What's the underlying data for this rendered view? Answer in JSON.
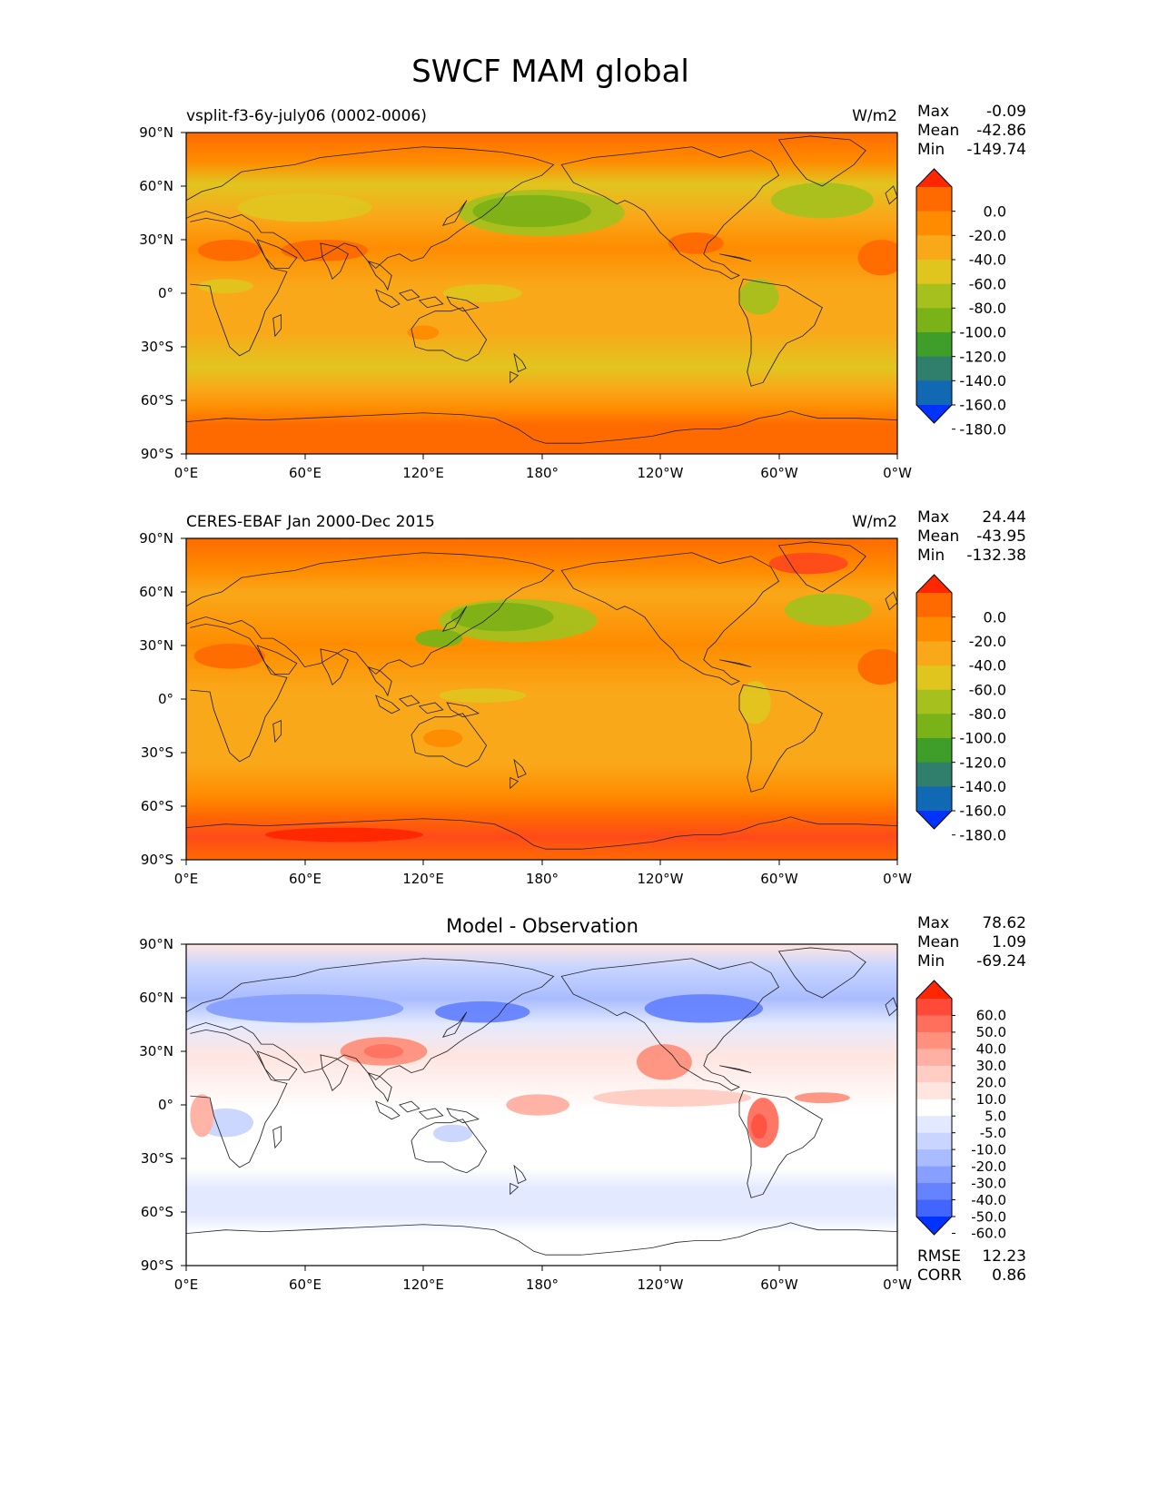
{
  "figure": {
    "title": "SWCF MAM global",
    "colors": {
      "land_outline": "#222222",
      "frame": "#000000"
    }
  },
  "axes": {
    "lat_ticks": [
      "90°N",
      "60°N",
      "30°N",
      "0°",
      "30°S",
      "60°S",
      "90°S"
    ],
    "lon_ticks": [
      "0°E",
      "60°E",
      "120°E",
      "180°",
      "120°W",
      "60°W",
      "0°W"
    ]
  },
  "panels": [
    {
      "id": "model",
      "left_title": "vsplit-f3-6y-july06 (0002-0006)",
      "center_title": "",
      "units": "W/m2",
      "stats": [
        {
          "label": "Max",
          "value": "-0.09"
        },
        {
          "label": "Mean",
          "value": "-42.86"
        },
        {
          "label": "Min",
          "value": "-149.74"
        }
      ],
      "colorbar": {
        "tick_labels": [
          "0.0",
          "-20.0",
          "-40.0",
          "-60.0",
          "-80.0",
          "-100.0",
          "-120.0",
          "-140.0",
          "-160.0",
          "-180.0"
        ],
        "colors": [
          "#ff2600",
          "#ff6a00",
          "#ff8c00",
          "#f9a81a",
          "#e1c51f",
          "#a6c11d",
          "#7ab317",
          "#3f9e2a",
          "#2f7f6c",
          "#1168b3",
          "#0033ff"
        ]
      }
    },
    {
      "id": "obs",
      "left_title": "CERES-EBAF Jan 2000-Dec 2015",
      "center_title": "",
      "units": "W/m2",
      "stats": [
        {
          "label": "Max",
          "value": "24.44"
        },
        {
          "label": "Mean",
          "value": "-43.95"
        },
        {
          "label": "Min",
          "value": "-132.38"
        }
      ],
      "colorbar": {
        "tick_labels": [
          "0.0",
          "-20.0",
          "-40.0",
          "-60.0",
          "-80.0",
          "-100.0",
          "-120.0",
          "-140.0",
          "-160.0",
          "-180.0"
        ],
        "colors": [
          "#ff2600",
          "#ff6a00",
          "#ff8c00",
          "#f9a81a",
          "#e1c51f",
          "#a6c11d",
          "#7ab317",
          "#3f9e2a",
          "#2f7f6c",
          "#1168b3",
          "#0033ff"
        ]
      }
    },
    {
      "id": "diff",
      "left_title": "",
      "center_title": "Model - Observation",
      "units": "",
      "stats": [
        {
          "label": "Max",
          "value": "78.62"
        },
        {
          "label": "Mean",
          "value": "1.09"
        },
        {
          "label": "Min",
          "value": "-69.24"
        }
      ],
      "colorbar": {
        "tick_labels": [
          "60.0",
          "50.0",
          "40.0",
          "30.0",
          "20.0",
          "10.0",
          "5.0",
          "-5.0",
          "-10.0",
          "-20.0",
          "-30.0",
          "-40.0",
          "-50.0",
          "-60.0"
        ],
        "colors": [
          "#ff2600",
          "#ff4a3a",
          "#ff6f5c",
          "#ff917e",
          "#ffb0a2",
          "#ffcdc3",
          "#ffe5e0",
          "#ffffff",
          "#e3e9ff",
          "#c9d5ff",
          "#a9bcff",
          "#879fff",
          "#6683ff",
          "#4265ff",
          "#0033ff"
        ]
      },
      "metrics": [
        {
          "label": "RMSE",
          "value": "12.23"
        },
        {
          "label": "CORR",
          "value": "0.86"
        }
      ]
    }
  ]
}
